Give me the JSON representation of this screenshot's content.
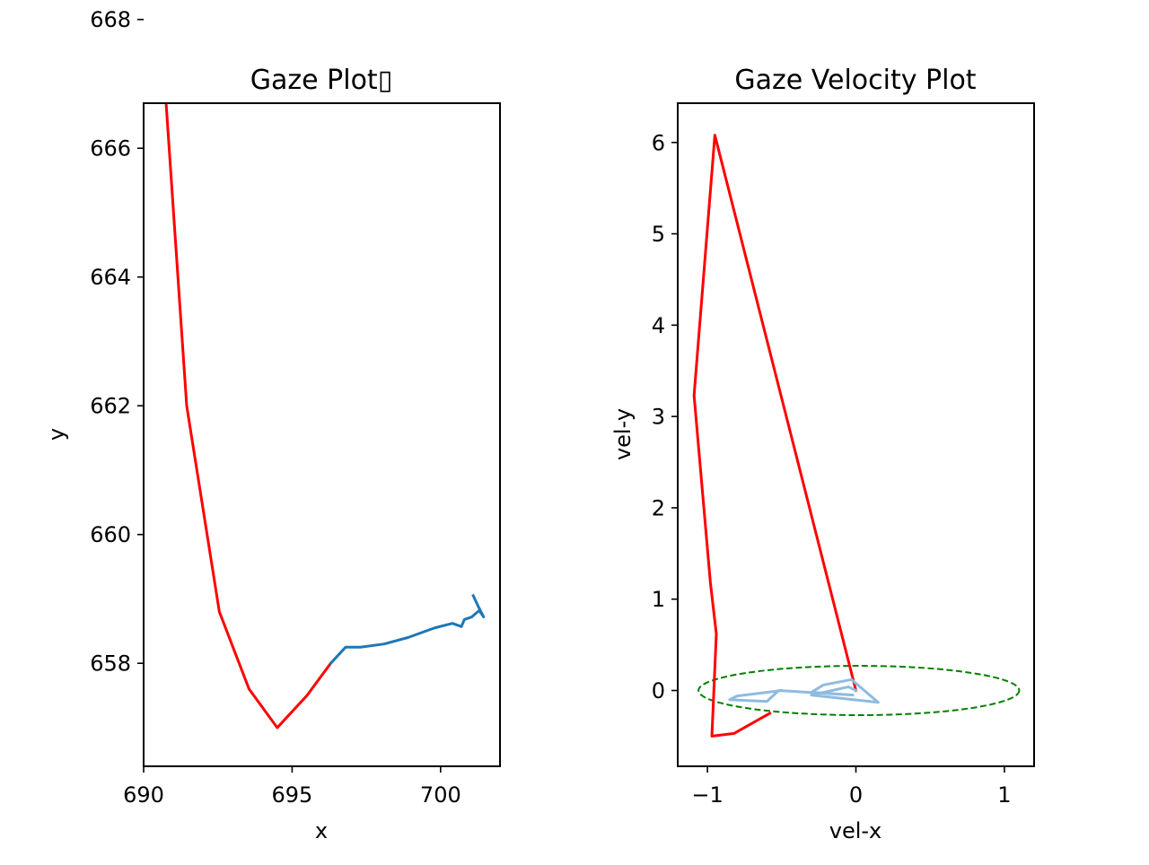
{
  "chart_data": [
    {
      "type": "line",
      "title": "Gaze Plot▯",
      "xlabel": "x",
      "ylabel": "y",
      "xlim": [
        690.0,
        702.0
      ],
      "ylim": [
        656.4,
        666.7
      ],
      "xticks": [
        690,
        695,
        700
      ],
      "yticks": [
        658,
        660,
        662,
        664,
        666,
        668
      ],
      "grid": false,
      "series": [
        {
          "color": "#ff0000",
          "points": [
            [
              690.55,
              668.1
            ],
            [
              691.45,
              662.0
            ],
            [
              692.55,
              658.8
            ],
            [
              693.55,
              657.6
            ],
            [
              694.5,
              657.0
            ],
            [
              695.5,
              657.5
            ],
            [
              696.3,
              658.0
            ]
          ]
        },
        {
          "color": "#1f77b4",
          "points": [
            [
              696.3,
              658.0
            ],
            [
              696.8,
              658.25
            ],
            [
              697.3,
              658.25
            ],
            [
              698.1,
              658.3
            ],
            [
              698.9,
              658.4
            ],
            [
              699.8,
              658.55
            ],
            [
              700.4,
              658.62
            ],
            [
              700.7,
              658.57
            ],
            [
              700.8,
              658.68
            ],
            [
              701.05,
              658.72
            ],
            [
              701.3,
              658.82
            ],
            [
              701.45,
              658.72
            ],
            [
              701.25,
              658.9
            ],
            [
              701.1,
              659.05
            ]
          ]
        }
      ]
    },
    {
      "type": "line",
      "title": "Gaze Velocity Plot",
      "xlabel": "vel-x",
      "ylabel": "vel-y",
      "xlim": [
        -1.2,
        1.2
      ],
      "ylim": [
        -0.83,
        6.43
      ],
      "xticks": [
        -1,
        0,
        1
      ],
      "yticks": [
        0,
        1,
        2,
        3,
        4,
        5,
        6
      ],
      "grid": false,
      "series": [
        {
          "color": "#ff0000",
          "points": [
            [
              -0.58,
              -0.25
            ],
            [
              -0.82,
              -0.47
            ],
            [
              -0.97,
              -0.5
            ],
            [
              -0.94,
              0.62
            ],
            [
              -0.98,
              1.18
            ],
            [
              -1.09,
              3.23
            ],
            [
              -0.95,
              6.08
            ],
            [
              0.0,
              0.0
            ]
          ]
        },
        {
          "color": "#8fbbe0",
          "points": [
            [
              0.0,
              0.0
            ],
            [
              -0.05,
              0.04
            ],
            [
              -0.3,
              -0.05
            ],
            [
              0.15,
              -0.13
            ],
            [
              -0.03,
              0.12
            ],
            [
              -0.22,
              0.06
            ],
            [
              -0.3,
              -0.02
            ],
            [
              -0.02,
              -0.05
            ],
            [
              -0.52,
              0.0
            ],
            [
              -0.6,
              -0.12
            ],
            [
              -0.85,
              -0.1
            ],
            [
              -0.8,
              -0.06
            ],
            [
              -0.5,
              0.0
            ]
          ]
        }
      ],
      "ellipse": {
        "center": [
          0.02,
          0.0
        ],
        "width": 2.16,
        "height": 0.54,
        "color": "#008000",
        "style": "dashed"
      }
    }
  ]
}
